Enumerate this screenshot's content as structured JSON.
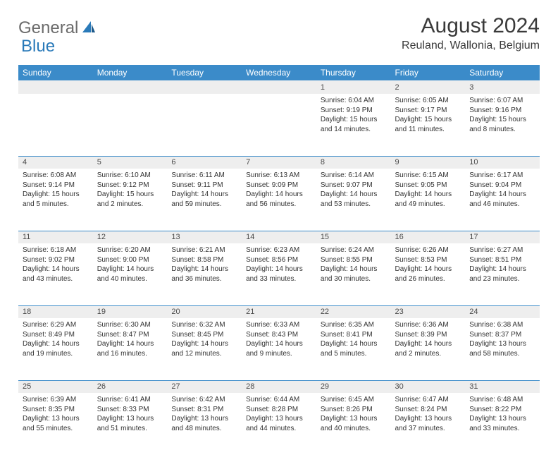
{
  "logo": {
    "text1": "General",
    "text2": "Blue"
  },
  "title": "August 2024",
  "location": "Reuland, Wallonia, Belgium",
  "colors": {
    "header_bg": "#3b8bc9",
    "header_text": "#ffffff",
    "daynum_bg": "#eeeeee",
    "border": "#3b8bc9",
    "text": "#333333",
    "logo_gray": "#6b6b6b",
    "logo_blue": "#2a7ab9"
  },
  "typography": {
    "title_fontsize": 30,
    "location_fontsize": 16,
    "header_fontsize": 12,
    "daynum_fontsize": 11,
    "cell_fontsize": 10
  },
  "day_headers": [
    "Sunday",
    "Monday",
    "Tuesday",
    "Wednesday",
    "Thursday",
    "Friday",
    "Saturday"
  ],
  "weeks": [
    {
      "nums": [
        "",
        "",
        "",
        "",
        "1",
        "2",
        "3"
      ],
      "cells": [
        {
          "sunrise": "",
          "sunset": "",
          "daylight": ""
        },
        {
          "sunrise": "",
          "sunset": "",
          "daylight": ""
        },
        {
          "sunrise": "",
          "sunset": "",
          "daylight": ""
        },
        {
          "sunrise": "",
          "sunset": "",
          "daylight": ""
        },
        {
          "sunrise": "Sunrise: 6:04 AM",
          "sunset": "Sunset: 9:19 PM",
          "daylight": "Daylight: 15 hours and 14 minutes."
        },
        {
          "sunrise": "Sunrise: 6:05 AM",
          "sunset": "Sunset: 9:17 PM",
          "daylight": "Daylight: 15 hours and 11 minutes."
        },
        {
          "sunrise": "Sunrise: 6:07 AM",
          "sunset": "Sunset: 9:16 PM",
          "daylight": "Daylight: 15 hours and 8 minutes."
        }
      ]
    },
    {
      "nums": [
        "4",
        "5",
        "6",
        "7",
        "8",
        "9",
        "10"
      ],
      "cells": [
        {
          "sunrise": "Sunrise: 6:08 AM",
          "sunset": "Sunset: 9:14 PM",
          "daylight": "Daylight: 15 hours and 5 minutes."
        },
        {
          "sunrise": "Sunrise: 6:10 AM",
          "sunset": "Sunset: 9:12 PM",
          "daylight": "Daylight: 15 hours and 2 minutes."
        },
        {
          "sunrise": "Sunrise: 6:11 AM",
          "sunset": "Sunset: 9:11 PM",
          "daylight": "Daylight: 14 hours and 59 minutes."
        },
        {
          "sunrise": "Sunrise: 6:13 AM",
          "sunset": "Sunset: 9:09 PM",
          "daylight": "Daylight: 14 hours and 56 minutes."
        },
        {
          "sunrise": "Sunrise: 6:14 AM",
          "sunset": "Sunset: 9:07 PM",
          "daylight": "Daylight: 14 hours and 53 minutes."
        },
        {
          "sunrise": "Sunrise: 6:15 AM",
          "sunset": "Sunset: 9:05 PM",
          "daylight": "Daylight: 14 hours and 49 minutes."
        },
        {
          "sunrise": "Sunrise: 6:17 AM",
          "sunset": "Sunset: 9:04 PM",
          "daylight": "Daylight: 14 hours and 46 minutes."
        }
      ]
    },
    {
      "nums": [
        "11",
        "12",
        "13",
        "14",
        "15",
        "16",
        "17"
      ],
      "cells": [
        {
          "sunrise": "Sunrise: 6:18 AM",
          "sunset": "Sunset: 9:02 PM",
          "daylight": "Daylight: 14 hours and 43 minutes."
        },
        {
          "sunrise": "Sunrise: 6:20 AM",
          "sunset": "Sunset: 9:00 PM",
          "daylight": "Daylight: 14 hours and 40 minutes."
        },
        {
          "sunrise": "Sunrise: 6:21 AM",
          "sunset": "Sunset: 8:58 PM",
          "daylight": "Daylight: 14 hours and 36 minutes."
        },
        {
          "sunrise": "Sunrise: 6:23 AM",
          "sunset": "Sunset: 8:56 PM",
          "daylight": "Daylight: 14 hours and 33 minutes."
        },
        {
          "sunrise": "Sunrise: 6:24 AM",
          "sunset": "Sunset: 8:55 PM",
          "daylight": "Daylight: 14 hours and 30 minutes."
        },
        {
          "sunrise": "Sunrise: 6:26 AM",
          "sunset": "Sunset: 8:53 PM",
          "daylight": "Daylight: 14 hours and 26 minutes."
        },
        {
          "sunrise": "Sunrise: 6:27 AM",
          "sunset": "Sunset: 8:51 PM",
          "daylight": "Daylight: 14 hours and 23 minutes."
        }
      ]
    },
    {
      "nums": [
        "18",
        "19",
        "20",
        "21",
        "22",
        "23",
        "24"
      ],
      "cells": [
        {
          "sunrise": "Sunrise: 6:29 AM",
          "sunset": "Sunset: 8:49 PM",
          "daylight": "Daylight: 14 hours and 19 minutes."
        },
        {
          "sunrise": "Sunrise: 6:30 AM",
          "sunset": "Sunset: 8:47 PM",
          "daylight": "Daylight: 14 hours and 16 minutes."
        },
        {
          "sunrise": "Sunrise: 6:32 AM",
          "sunset": "Sunset: 8:45 PM",
          "daylight": "Daylight: 14 hours and 12 minutes."
        },
        {
          "sunrise": "Sunrise: 6:33 AM",
          "sunset": "Sunset: 8:43 PM",
          "daylight": "Daylight: 14 hours and 9 minutes."
        },
        {
          "sunrise": "Sunrise: 6:35 AM",
          "sunset": "Sunset: 8:41 PM",
          "daylight": "Daylight: 14 hours and 5 minutes."
        },
        {
          "sunrise": "Sunrise: 6:36 AM",
          "sunset": "Sunset: 8:39 PM",
          "daylight": "Daylight: 14 hours and 2 minutes."
        },
        {
          "sunrise": "Sunrise: 6:38 AM",
          "sunset": "Sunset: 8:37 PM",
          "daylight": "Daylight: 13 hours and 58 minutes."
        }
      ]
    },
    {
      "nums": [
        "25",
        "26",
        "27",
        "28",
        "29",
        "30",
        "31"
      ],
      "cells": [
        {
          "sunrise": "Sunrise: 6:39 AM",
          "sunset": "Sunset: 8:35 PM",
          "daylight": "Daylight: 13 hours and 55 minutes."
        },
        {
          "sunrise": "Sunrise: 6:41 AM",
          "sunset": "Sunset: 8:33 PM",
          "daylight": "Daylight: 13 hours and 51 minutes."
        },
        {
          "sunrise": "Sunrise: 6:42 AM",
          "sunset": "Sunset: 8:31 PM",
          "daylight": "Daylight: 13 hours and 48 minutes."
        },
        {
          "sunrise": "Sunrise: 6:44 AM",
          "sunset": "Sunset: 8:28 PM",
          "daylight": "Daylight: 13 hours and 44 minutes."
        },
        {
          "sunrise": "Sunrise: 6:45 AM",
          "sunset": "Sunset: 8:26 PM",
          "daylight": "Daylight: 13 hours and 40 minutes."
        },
        {
          "sunrise": "Sunrise: 6:47 AM",
          "sunset": "Sunset: 8:24 PM",
          "daylight": "Daylight: 13 hours and 37 minutes."
        },
        {
          "sunrise": "Sunrise: 6:48 AM",
          "sunset": "Sunset: 8:22 PM",
          "daylight": "Daylight: 13 hours and 33 minutes."
        }
      ]
    }
  ]
}
